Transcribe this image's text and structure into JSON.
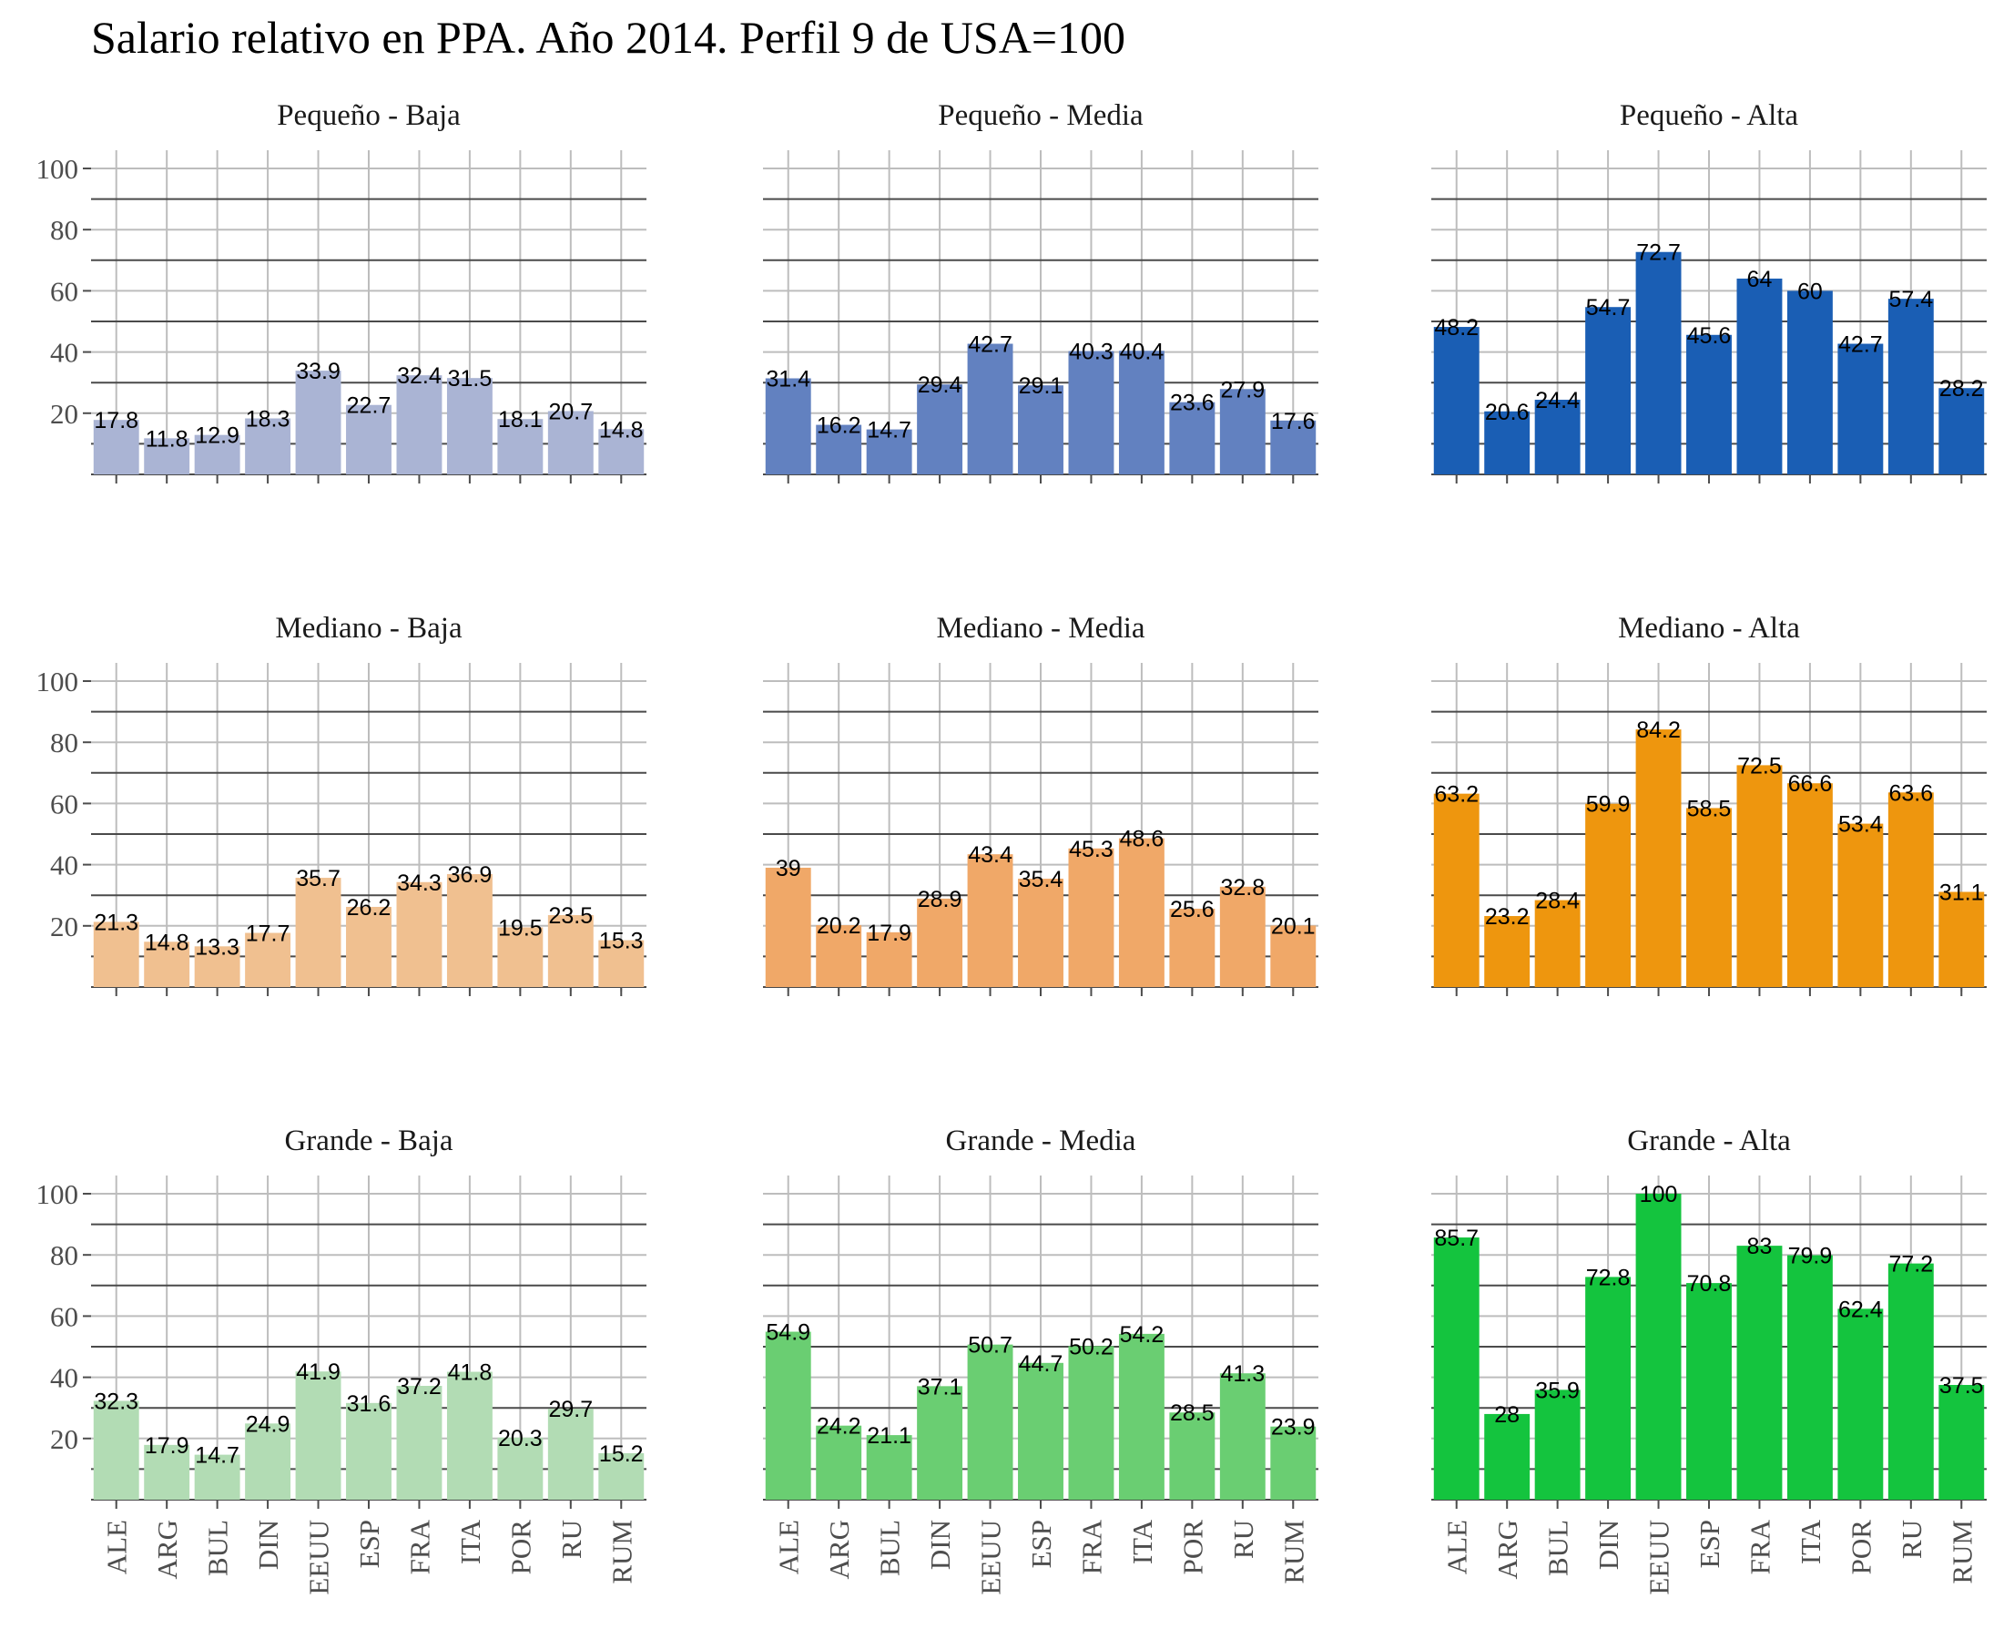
{
  "title": "Salario relativo en PPA. Año 2014. Perfil 9 de USA=100",
  "chart_data": {
    "type": "bar",
    "title": "Salario relativo en PPA. Año 2014. Perfil 9 de USA=100",
    "categories": [
      "ALE",
      "ARG",
      "BUL",
      "DIN",
      "EEUU",
      "ESP",
      "FRA",
      "ITA",
      "POR",
      "RU",
      "RUM"
    ],
    "ylim": [
      0,
      100
    ],
    "yticks": [
      20,
      40,
      60,
      80,
      100
    ],
    "grid": true,
    "legend": "none",
    "panels": [
      {
        "label": "Pequeño - Baja",
        "color": "#aab4d4",
        "values": [
          17.8,
          11.8,
          12.9,
          18.3,
          33.9,
          22.7,
          32.4,
          31.5,
          18.1,
          20.7,
          14.8
        ]
      },
      {
        "label": "Pequeño - Media",
        "color": "#6281c0",
        "values": [
          31.4,
          16.2,
          14.7,
          29.4,
          42.7,
          29.1,
          40.3,
          40.4,
          23.6,
          27.9,
          17.6
        ]
      },
      {
        "label": "Pequeño - Alta",
        "color": "#1a5eb4",
        "values": [
          48.2,
          20.6,
          24.4,
          54.7,
          72.7,
          45.6,
          64,
          60,
          42.7,
          57.4,
          28.2
        ]
      },
      {
        "label": "Mediano - Baja",
        "color": "#f0c090",
        "values": [
          21.3,
          14.8,
          13.3,
          17.7,
          35.7,
          26.2,
          34.3,
          36.9,
          19.5,
          23.5,
          15.3
        ]
      },
      {
        "label": "Mediano - Media",
        "color": "#f0a868",
        "values": [
          39,
          20.2,
          17.9,
          28.9,
          43.4,
          35.4,
          45.3,
          48.6,
          25.6,
          32.8,
          20.1
        ]
      },
      {
        "label": "Mediano - Alta",
        "color": "#ee960e",
        "values": [
          63.2,
          23.2,
          28.4,
          59.9,
          84.2,
          58.5,
          72.5,
          66.6,
          53.4,
          63.6,
          31.1
        ]
      },
      {
        "label": "Grande - Baja",
        "color": "#b2dcb4",
        "values": [
          32.3,
          17.9,
          14.7,
          24.9,
          41.9,
          31.6,
          37.2,
          41.8,
          20.3,
          29.7,
          15.2
        ]
      },
      {
        "label": "Grande - Media",
        "color": "#6ace72",
        "values": [
          54.9,
          24.2,
          21.1,
          37.1,
          50.7,
          44.7,
          50.2,
          54.2,
          28.5,
          41.3,
          23.9
        ]
      },
      {
        "label": "Grande - Alta",
        "color": "#14c43e",
        "values": [
          85.7,
          28,
          35.9,
          72.8,
          100,
          70.8,
          83,
          79.9,
          62.4,
          77.2,
          37.5
        ]
      }
    ]
  }
}
